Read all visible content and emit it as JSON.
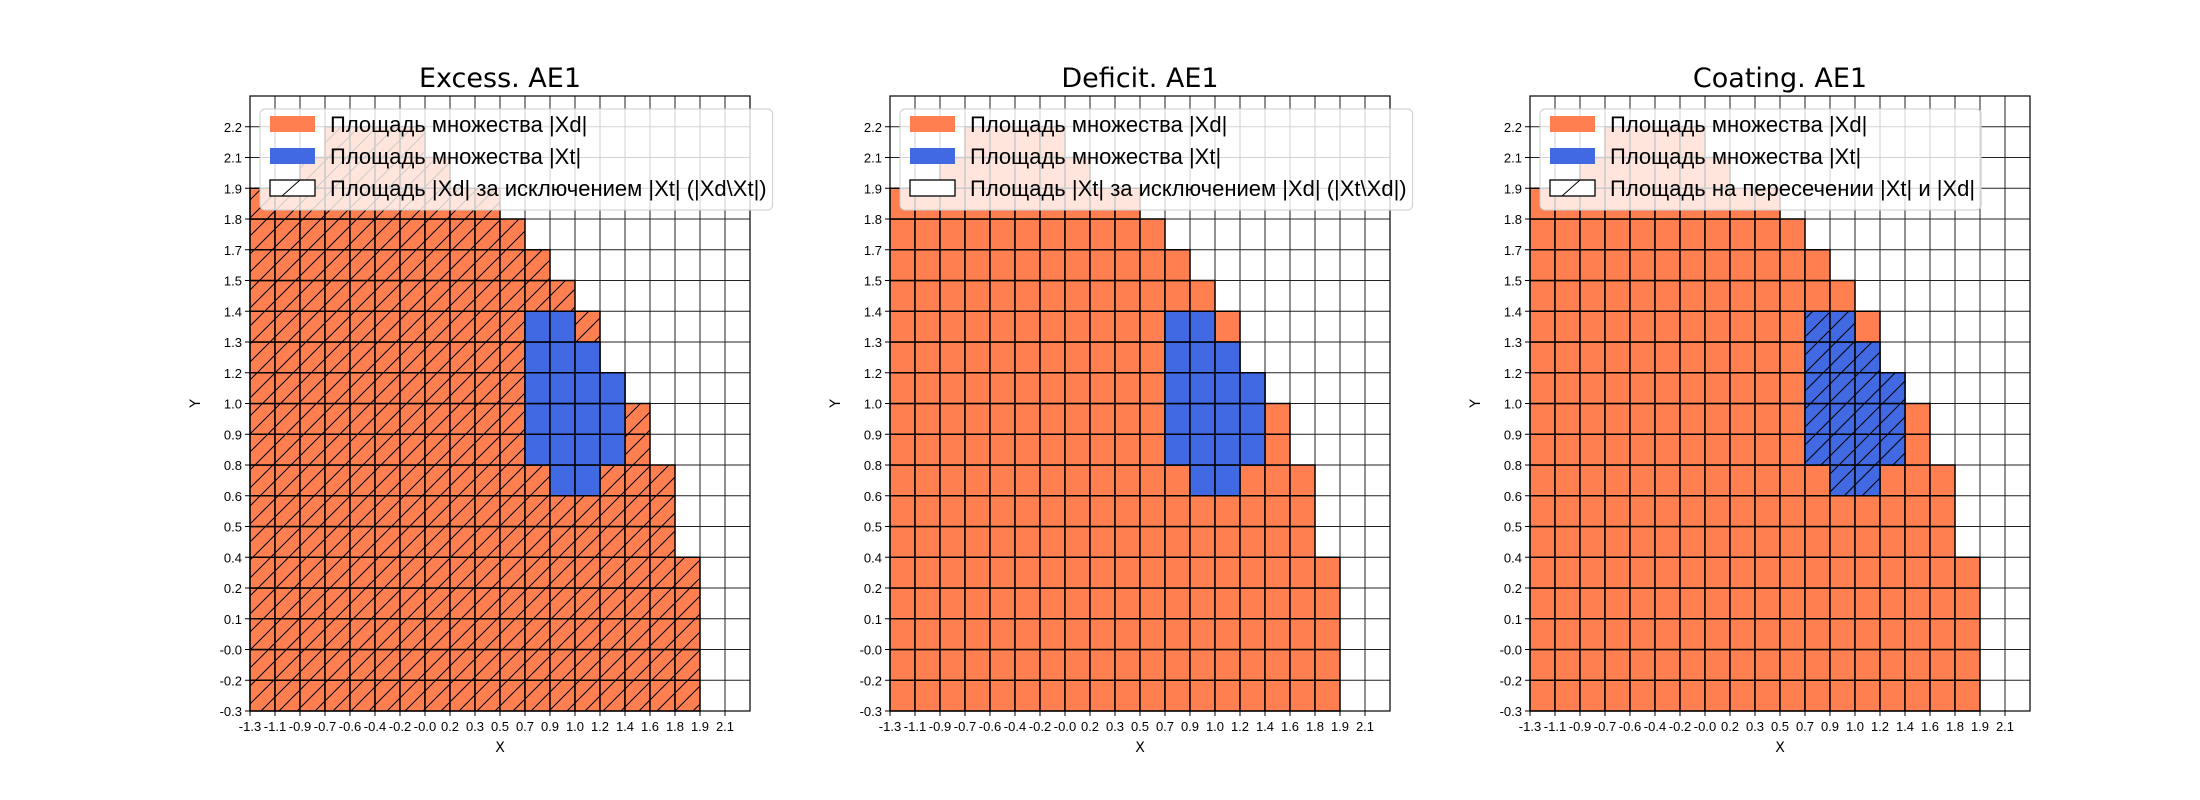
{
  "colors": {
    "xd": "#FF7F50",
    "xt": "#4169E1",
    "edge": "#000000",
    "grid": "#222222"
  },
  "chart_data": [
    {
      "type": "heatmap",
      "title": "Excess. AE1",
      "xlabel": "X",
      "ylabel": "Y",
      "grid": true,
      "legend_position": "top-left",
      "hatched_set": "xd",
      "legend": [
        {
          "label": "Площадь множества |Xd|",
          "patch": "xd"
        },
        {
          "label": "Площадь множества  |Xt|",
          "patch": "xt"
        },
        {
          "label": "Площадь |Xd| за исключением |Xt| (|Xd\\Xt|)",
          "patch": "hatch"
        }
      ]
    },
    {
      "type": "heatmap",
      "title": "Deficit. AE1",
      "xlabel": "X",
      "ylabel": "Y",
      "grid": true,
      "legend_position": "top-left",
      "hatched_set": "none",
      "legend": [
        {
          "label": "Площадь множества |Xd|",
          "patch": "xd"
        },
        {
          "label": "Площадь множества  |Xt|",
          "patch": "xt"
        },
        {
          "label": "Площадь |Xt| за исключением |Xd| (|Xt\\Xd|)",
          "patch": "empty"
        }
      ]
    },
    {
      "type": "heatmap",
      "title": "Coating. AE1",
      "xlabel": "X",
      "ylabel": "Y",
      "grid": true,
      "legend_position": "top-left",
      "hatched_set": "xt",
      "legend": [
        {
          "label": "Площадь множества |Xd|",
          "patch": "xd"
        },
        {
          "label": "Площадь множества  |Xt|",
          "patch": "xt"
        },
        {
          "label": "Площадь на пересечении |Xt| и |Xd|",
          "patch": "hatch"
        }
      ]
    }
  ],
  "grid_data": {
    "x_ticks": [
      "-1.3",
      "-1.1",
      "-0.9",
      "-0.7",
      "-0.6",
      "-0.4",
      "-0.2",
      "-0.0",
      "0.2",
      "0.3",
      "0.5",
      "0.7",
      "0.9",
      "1.0",
      "1.2",
      "1.4",
      "1.6",
      "1.8",
      "1.9",
      "2.1"
    ],
    "y_ticks": [
      "-0.3",
      "-0.2",
      "-0.0",
      "0.1",
      "0.2",
      "0.4",
      "0.5",
      "0.6",
      "0.8",
      "0.9",
      "1.0",
      "1.2",
      "1.3",
      "1.4",
      "1.5",
      "1.7",
      "1.8",
      "1.9",
      "2.1",
      "2.2"
    ],
    "xd_columns": [
      {
        "x": "-1.3",
        "y_top": "1.9"
      },
      {
        "x": "-1.1",
        "y_top": "1.9"
      },
      {
        "x": "-0.9",
        "y_top": "2.1"
      },
      {
        "x": "-0.7",
        "y_top": "2.2"
      },
      {
        "x": "-0.6",
        "y_top": "2.2"
      },
      {
        "x": "-0.4",
        "y_top": "2.2"
      },
      {
        "x": "-0.2",
        "y_top": "2.2"
      },
      {
        "x": "-0.0",
        "y_top": "2.1"
      },
      {
        "x": "0.2",
        "y_top": "1.9"
      },
      {
        "x": "0.3",
        "y_top": "1.9"
      },
      {
        "x": "0.5",
        "y_top": "1.8"
      },
      {
        "x": "0.7",
        "y_top": "1.7"
      },
      {
        "x": "0.9",
        "y_top": "1.5"
      },
      {
        "x": "1.0",
        "y_top": "1.4"
      },
      {
        "x": "1.2",
        "y_top": "1.2"
      },
      {
        "x": "1.4",
        "y_top": "1.0"
      },
      {
        "x": "1.6",
        "y_top": "0.8"
      },
      {
        "x": "1.8",
        "y_top": "0.4"
      }
    ],
    "xd_y_bottom": "-0.3",
    "xt_columns": [
      {
        "x": "0.7",
        "y_bottom": "0.8",
        "y_top": "1.4"
      },
      {
        "x": "0.9",
        "y_bottom": "0.6",
        "y_top": "1.4"
      },
      {
        "x": "1.0",
        "y_bottom": "0.6",
        "y_top": "1.3"
      },
      {
        "x": "1.2",
        "y_bottom": "0.8",
        "y_top": "1.2"
      }
    ]
  }
}
